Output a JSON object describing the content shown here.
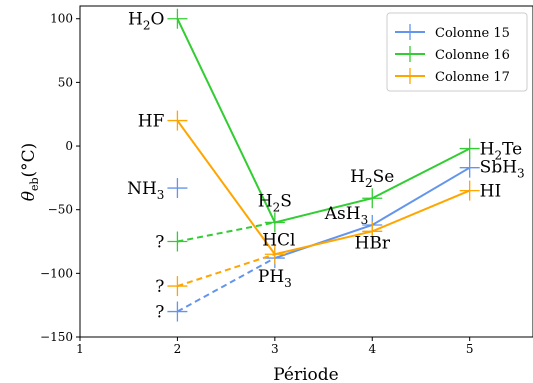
{
  "chart_data": {
    "type": "line",
    "xlabel": "Période",
    "ylabel": "θ",
    "ylabel_sub": "eb",
    "ylabel_unit": "(°C)",
    "xlim": [
      1,
      5.65
    ],
    "ylim": [
      -150,
      110
    ],
    "xticks": [
      1,
      2,
      3,
      4,
      5
    ],
    "yticks": [
      -150,
      -100,
      -50,
      0,
      50,
      100
    ],
    "grid": false,
    "legend": {
      "position": "top-right"
    },
    "series": [
      {
        "name": "Colonne 15",
        "color": "#6495ed",
        "x": [
          3,
          4,
          5
        ],
        "y": [
          -88,
          -62,
          -17
        ],
        "extrapolated": {
          "x": [
            2,
            3
          ],
          "y": [
            -130,
            -88
          ]
        },
        "labels": [
          {
            "x": 2,
            "y": -33,
            "text": "NH",
            "sub": "3"
          },
          {
            "x": 3,
            "y": -88,
            "text": "PH",
            "sub": "3"
          },
          {
            "x": 4,
            "y": -62,
            "text": "AsH",
            "sub": "3"
          },
          {
            "x": 5,
            "y": -17,
            "text": "SbH",
            "sub": "3"
          }
        ],
        "outlier": {
          "x": 2,
          "y": -33
        },
        "unknown": {
          "x": 2,
          "y": -130,
          "text": "?"
        }
      },
      {
        "name": "Colonne 16",
        "color": "#32cd32",
        "x": [
          2,
          3,
          4,
          5
        ],
        "y": [
          100,
          -60,
          -41,
          -2
        ],
        "extrapolated": {
          "x": [
            2,
            3
          ],
          "y": [
            -75,
            -60
          ]
        },
        "labels": [
          {
            "x": 2,
            "y": 100,
            "text": "H",
            "sub": "2",
            "after": "O"
          },
          {
            "x": 3,
            "y": -60,
            "text": "H",
            "sub": "2",
            "after": "S"
          },
          {
            "x": 4,
            "y": -41,
            "text": "H",
            "sub": "2",
            "after": "Se"
          },
          {
            "x": 5,
            "y": -2,
            "text": "H",
            "sub": "2",
            "after": "Te"
          }
        ],
        "unknown": {
          "x": 2,
          "y": -75,
          "text": "?"
        }
      },
      {
        "name": "Colonne 17",
        "color": "#ffa500",
        "x": [
          2,
          3,
          4,
          5
        ],
        "y": [
          20,
          -85,
          -67,
          -35
        ],
        "extrapolated": {
          "x": [
            2,
            3
          ],
          "y": [
            -110,
            -85
          ]
        },
        "labels": [
          {
            "x": 2,
            "y": 20,
            "text": "HF"
          },
          {
            "x": 3,
            "y": -85,
            "text": "HCl"
          },
          {
            "x": 4,
            "y": -67,
            "text": "HBr"
          },
          {
            "x": 5,
            "y": -35,
            "text": "HI"
          }
        ],
        "unknown": {
          "x": 2,
          "y": -110,
          "text": "?"
        }
      }
    ]
  }
}
